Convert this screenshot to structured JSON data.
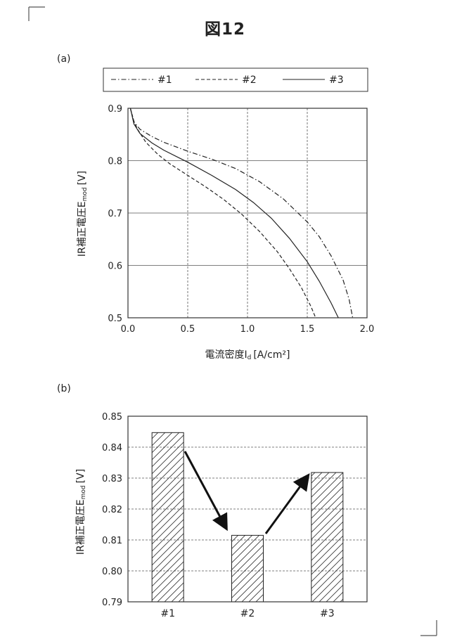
{
  "figure_title": "図12",
  "panel_a_label": "(a)",
  "panel_b_label": "(b)",
  "chart_data": [
    {
      "type": "line",
      "xlabel": "電流密度I",
      "xlabel_sub": "d",
      "xlabel_unit": "[A/cm²]",
      "ylabel": "IR補正電圧E",
      "ylabel_sub": "mod",
      "ylabel_unit": "[V]",
      "xlim": [
        0.0,
        2.0
      ],
      "ylim": [
        0.5,
        0.9
      ],
      "x_ticks": [
        "0.0",
        "0.5",
        "1.0",
        "1.5",
        "2.0"
      ],
      "y_ticks": [
        "0.5",
        "0.6",
        "0.7",
        "0.8",
        "0.9"
      ],
      "x_grid": "dashed",
      "y_grid": "solid",
      "legend_position": "top",
      "series": [
        {
          "name": "#1",
          "dash": "dashdot",
          "x": [
            0.02,
            0.05,
            0.1,
            0.2,
            0.3,
            0.5,
            0.7,
            0.9,
            1.1,
            1.3,
            1.5,
            1.6,
            1.7,
            1.8,
            1.85,
            1.88
          ],
          "y": [
            0.9,
            0.874,
            0.86,
            0.846,
            0.835,
            0.818,
            0.803,
            0.785,
            0.76,
            0.727,
            0.683,
            0.655,
            0.618,
            0.572,
            0.535,
            0.5
          ]
        },
        {
          "name": "#2",
          "dash": "dashed",
          "x": [
            0.02,
            0.05,
            0.08,
            0.15,
            0.25,
            0.35,
            0.5,
            0.65,
            0.8,
            0.95,
            1.1,
            1.25,
            1.35,
            1.45,
            1.53,
            1.57
          ],
          "y": [
            0.9,
            0.875,
            0.86,
            0.835,
            0.812,
            0.794,
            0.772,
            0.75,
            0.726,
            0.698,
            0.665,
            0.626,
            0.594,
            0.558,
            0.522,
            0.5
          ]
        },
        {
          "name": "#3",
          "dash": "solid",
          "x": [
            0.02,
            0.05,
            0.1,
            0.2,
            0.3,
            0.5,
            0.7,
            0.9,
            1.05,
            1.2,
            1.35,
            1.5,
            1.6,
            1.7,
            1.76
          ],
          "y": [
            0.9,
            0.87,
            0.852,
            0.834,
            0.82,
            0.797,
            0.772,
            0.745,
            0.72,
            0.69,
            0.652,
            0.607,
            0.57,
            0.528,
            0.5
          ]
        }
      ]
    },
    {
      "type": "bar",
      "categories": [
        "#1",
        "#2",
        "#3"
      ],
      "values": [
        0.8447,
        0.8115,
        0.8318
      ],
      "ylabel": "IR補正電圧E",
      "ylabel_sub": "mod",
      "ylabel_unit": "[V]",
      "ylim": [
        0.79,
        0.85
      ],
      "y_ticks": [
        "0.79",
        "0.80",
        "0.81",
        "0.82",
        "0.83",
        "0.84",
        "0.85"
      ],
      "y_grid": "dashed",
      "bar_fill": "hatched",
      "annotations": [
        "arrow #1→#2 (down)",
        "arrow #2→#3 (up)"
      ]
    }
  ]
}
